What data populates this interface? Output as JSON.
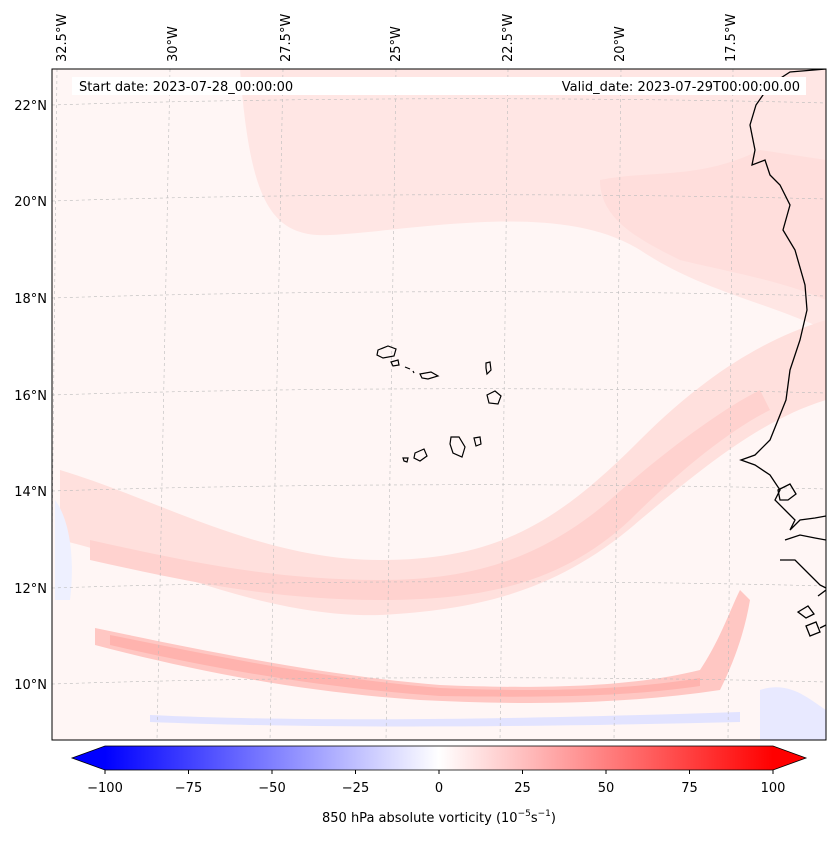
{
  "map": {
    "start_label": "Start date: 2023-07-28_00:00:00",
    "valid_label": "Valid_date: 2023-07-29T00:00:00.00",
    "lon_labels": [
      "32.5°W",
      "30°W",
      "27.5°W",
      "25°W",
      "22.5°W",
      "20°W",
      "17.5°W"
    ],
    "lat_labels": [
      "22°N",
      "20°N",
      "18°N",
      "16°N",
      "14°N",
      "12°N",
      "10°N"
    ]
  },
  "colorbar": {
    "ticks": [
      "−100",
      "−75",
      "−50",
      "−25",
      "0",
      "25",
      "50",
      "75",
      "100"
    ],
    "label_prefix": "850 hPa absolute vorticity (10",
    "label_exp1": "−5",
    "label_mid": "s",
    "label_exp2": "−1",
    "label_suffix": ")",
    "min_color": "#0000ff",
    "mid_color": "#ffffff",
    "max_color": "#ff0000"
  }
}
